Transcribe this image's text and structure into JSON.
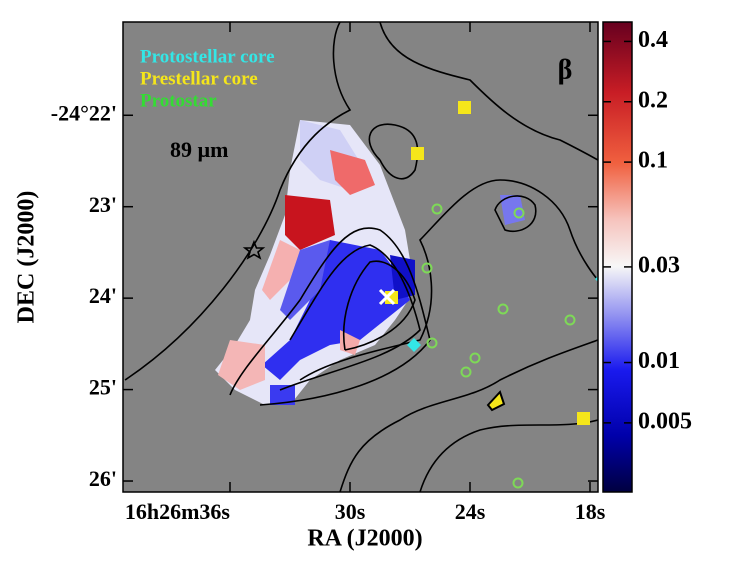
{
  "chart_data": {
    "type": "map",
    "legend": [
      {
        "name": "Protostellar core",
        "color": "#33e6e6"
      },
      {
        "name": "Prestellar core",
        "color": "#f5e61a"
      },
      {
        "name": "Protostar",
        "color": "#33dd33"
      }
    ],
    "annotations": [
      "β",
      "89 µm"
    ],
    "xlabel": "RA (J2000)",
    "ylabel": "DEC (J2000)",
    "xlim": [
      41.35,
      17.6
    ],
    "xticks": [
      {
        "value": 36,
        "label": "16h26m36s"
      },
      {
        "value": 30,
        "label": "30s"
      },
      {
        "value": 24,
        "label": "24s"
      },
      {
        "value": 18,
        "label": "18s"
      }
    ],
    "ylim": [
      20.98,
      26.12
    ],
    "yticks": [
      {
        "value": 22,
        "label": "-24°22'"
      },
      {
        "value": 23,
        "label": "23'"
      },
      {
        "value": 24,
        "label": "24'"
      },
      {
        "value": 25,
        "label": "25'"
      },
      {
        "value": 26,
        "label": "26'"
      }
    ],
    "colorbar": {
      "scale": "log",
      "lim": [
        0.00226,
        0.5
      ],
      "ticks": [
        0.4,
        0.2,
        0.1,
        0.03,
        0.01,
        0.005
      ]
    }
  }
}
